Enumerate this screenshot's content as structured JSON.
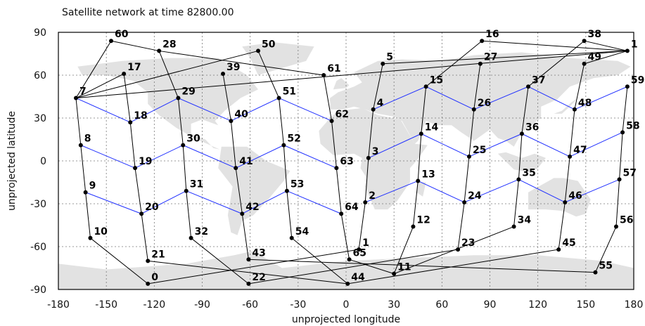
{
  "chart_data": {
    "type": "scatter",
    "title": "Satellite network at time 82800.00",
    "xlabel": "unprojected longitude",
    "ylabel": "unprojected latitude",
    "xlim": [
      -180,
      180
    ],
    "ylim": [
      -90,
      90
    ],
    "xticks": [
      -180,
      -150,
      -120,
      -90,
      -60,
      -30,
      0,
      30,
      60,
      90,
      120,
      150,
      180
    ],
    "yticks": [
      -90,
      -60,
      -30,
      0,
      30,
      60,
      90
    ],
    "grid": true,
    "nodes": [
      {
        "id": "0",
        "x": -124,
        "y": -86
      },
      {
        "id": "1",
        "x": 176,
        "y": 77
      },
      {
        "id": "1",
        "x": 8,
        "y": -62
      },
      {
        "id": "2",
        "x": 12,
        "y": -29
      },
      {
        "id": "3",
        "x": 14,
        "y": 2
      },
      {
        "id": "4",
        "x": 17,
        "y": 36
      },
      {
        "id": "5",
        "x": 23,
        "y": 68
      },
      {
        "id": "7",
        "x": -169,
        "y": 44
      },
      {
        "id": "8",
        "x": -166,
        "y": 11
      },
      {
        "id": "9",
        "x": -163,
        "y": -22
      },
      {
        "id": "10",
        "x": -160,
        "y": -54
      },
      {
        "id": "11",
        "x": 30,
        "y": -79
      },
      {
        "id": "12",
        "x": 42,
        "y": -46
      },
      {
        "id": "13",
        "x": 45,
        "y": -14
      },
      {
        "id": "14",
        "x": 47,
        "y": 19
      },
      {
        "id": "15",
        "x": 50,
        "y": 52
      },
      {
        "id": "16",
        "x": 85,
        "y": 84
      },
      {
        "id": "17",
        "x": -139,
        "y": 61
      },
      {
        "id": "18",
        "x": -135,
        "y": 27
      },
      {
        "id": "19",
        "x": -132,
        "y": -5
      },
      {
        "id": "20",
        "x": -128,
        "y": -37
      },
      {
        "id": "21",
        "x": -124,
        "y": -70
      },
      {
        "id": "22",
        "x": -61,
        "y": -86
      },
      {
        "id": "23",
        "x": 70,
        "y": -62
      },
      {
        "id": "24",
        "x": 74,
        "y": -29
      },
      {
        "id": "25",
        "x": 77,
        "y": 3
      },
      {
        "id": "26",
        "x": 80,
        "y": 36
      },
      {
        "id": "27",
        "x": 84,
        "y": 68
      },
      {
        "id": "28",
        "x": -117,
        "y": 77
      },
      {
        "id": "29",
        "x": -105,
        "y": 44
      },
      {
        "id": "30",
        "x": -102,
        "y": 11
      },
      {
        "id": "31",
        "x": -100,
        "y": -21
      },
      {
        "id": "32",
        "x": -97,
        "y": -54
      },
      {
        "id": "34",
        "x": 105,
        "y": -46
      },
      {
        "id": "35",
        "x": 108,
        "y": -13
      },
      {
        "id": "36",
        "x": 110,
        "y": 19
      },
      {
        "id": "37",
        "x": 114,
        "y": 52
      },
      {
        "id": "38",
        "x": 149,
        "y": 84
      },
      {
        "id": "39",
        "x": -77,
        "y": 61
      },
      {
        "id": "40",
        "x": -72,
        "y": 28
      },
      {
        "id": "41",
        "x": -69,
        "y": -5
      },
      {
        "id": "42",
        "x": -65,
        "y": -37
      },
      {
        "id": "43",
        "x": -61,
        "y": -69
      },
      {
        "id": "44",
        "x": 1,
        "y": -86
      },
      {
        "id": "45",
        "x": 133,
        "y": -62
      },
      {
        "id": "46",
        "x": 137,
        "y": -29
      },
      {
        "id": "47",
        "x": 140,
        "y": 3
      },
      {
        "id": "48",
        "x": 143,
        "y": 36
      },
      {
        "id": "49",
        "x": 149,
        "y": 68
      },
      {
        "id": "50",
        "x": -55,
        "y": 77
      },
      {
        "id": "51",
        "x": -42,
        "y": 44
      },
      {
        "id": "52",
        "x": -39,
        "y": 11
      },
      {
        "id": "53",
        "x": -37,
        "y": -21
      },
      {
        "id": "54",
        "x": -34,
        "y": -54
      },
      {
        "id": "55",
        "x": 156,
        "y": -78
      },
      {
        "id": "56",
        "x": 169,
        "y": -46
      },
      {
        "id": "57",
        "x": 171,
        "y": -13
      },
      {
        "id": "58",
        "x": 173,
        "y": 20
      },
      {
        "id": "59",
        "x": 176,
        "y": 52
      },
      {
        "id": "60",
        "x": -147,
        "y": 84
      },
      {
        "id": "61",
        "x": -14,
        "y": 60
      },
      {
        "id": "62",
        "x": -9,
        "y": 28
      },
      {
        "id": "63",
        "x": -6,
        "y": -5
      },
      {
        "id": "64",
        "x": -3,
        "y": -37
      },
      {
        "id": "65",
        "x": 2,
        "y": -69
      }
    ],
    "edges_black": [
      [
        "7",
        "8"
      ],
      [
        "8",
        "9"
      ],
      [
        "9",
        "10"
      ],
      [
        "10",
        "0"
      ],
      [
        "17",
        "18"
      ],
      [
        "18",
        "19"
      ],
      [
        "19",
        "20"
      ],
      [
        "20",
        "21"
      ],
      [
        "29",
        "30"
      ],
      [
        "30",
        "31"
      ],
      [
        "31",
        "32"
      ],
      [
        "32",
        "22"
      ],
      [
        "39",
        "40"
      ],
      [
        "40",
        "41"
      ],
      [
        "41",
        "42"
      ],
      [
        "42",
        "43"
      ],
      [
        "51",
        "52"
      ],
      [
        "52",
        "53"
      ],
      [
        "53",
        "54"
      ],
      [
        "54",
        "44"
      ],
      [
        "61",
        "62"
      ],
      [
        "62",
        "63"
      ],
      [
        "63",
        "64"
      ],
      [
        "64",
        "65"
      ],
      [
        "5",
        "4"
      ],
      [
        "4",
        "3"
      ],
      [
        "3",
        "2"
      ],
      [
        "2",
        "1_b"
      ],
      [
        "15",
        "14"
      ],
      [
        "14",
        "13"
      ],
      [
        "13",
        "12"
      ],
      [
        "12",
        "11"
      ],
      [
        "27",
        "26"
      ],
      [
        "26",
        "25"
      ],
      [
        "25",
        "24"
      ],
      [
        "24",
        "23"
      ],
      [
        "37",
        "36"
      ],
      [
        "36",
        "35"
      ],
      [
        "35",
        "34"
      ],
      [
        "49",
        "48"
      ],
      [
        "48",
        "47"
      ],
      [
        "47",
        "46"
      ],
      [
        "46",
        "45"
      ],
      [
        "59",
        "58"
      ],
      [
        "58",
        "57"
      ],
      [
        "57",
        "56"
      ],
      [
        "56",
        "55"
      ],
      [
        "60",
        "7"
      ],
      [
        "60",
        "28"
      ],
      [
        "28",
        "29"
      ],
      [
        "28",
        "61"
      ],
      [
        "17",
        "7"
      ],
      [
        "50",
        "51"
      ],
      [
        "50",
        "7"
      ],
      [
        "5",
        "1"
      ],
      [
        "15",
        "16"
      ],
      [
        "16",
        "1"
      ],
      [
        "38",
        "37"
      ],
      [
        "38",
        "1"
      ],
      [
        "1",
        "49"
      ],
      [
        "1",
        "7"
      ],
      [
        "0",
        "1_b"
      ],
      [
        "22",
        "23"
      ],
      [
        "21",
        "44"
      ],
      [
        "43",
        "55"
      ],
      [
        "44",
        "45"
      ],
      [
        "11",
        "34"
      ],
      [
        "11",
        "65"
      ]
    ],
    "edges_blue": [
      [
        "7",
        "18"
      ],
      [
        "18",
        "29"
      ],
      [
        "29",
        "40"
      ],
      [
        "40",
        "51"
      ],
      [
        "51",
        "62"
      ],
      [
        "8",
        "19"
      ],
      [
        "19",
        "30"
      ],
      [
        "30",
        "41"
      ],
      [
        "41",
        "52"
      ],
      [
        "52",
        "63"
      ],
      [
        "9",
        "20"
      ],
      [
        "20",
        "31"
      ],
      [
        "31",
        "42"
      ],
      [
        "42",
        "53"
      ],
      [
        "53",
        "64"
      ],
      [
        "4",
        "15"
      ],
      [
        "15",
        "26"
      ],
      [
        "26",
        "37"
      ],
      [
        "37",
        "48"
      ],
      [
        "48",
        "59"
      ],
      [
        "3",
        "14"
      ],
      [
        "14",
        "25"
      ],
      [
        "25",
        "36"
      ],
      [
        "36",
        "47"
      ],
      [
        "47",
        "58"
      ],
      [
        "2",
        "13"
      ],
      [
        "13",
        "24"
      ],
      [
        "24",
        "35"
      ],
      [
        "35",
        "46"
      ],
      [
        "46",
        "57"
      ]
    ]
  }
}
